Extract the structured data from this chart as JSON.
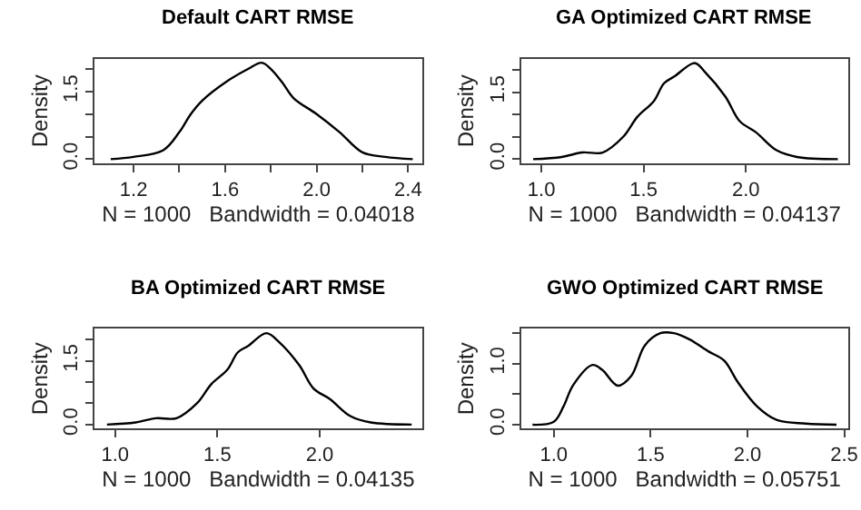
{
  "chart_data": [
    {
      "type": "line",
      "title": "Default CART RMSE",
      "xlabel": "N = 1000   Bandwidth = 0.04018",
      "ylabel": "Density",
      "color": "#000000",
      "marker": "none",
      "line_style": "solid",
      "x": [
        1.1,
        1.2,
        1.33,
        1.4,
        1.45,
        1.5,
        1.6,
        1.7,
        1.76,
        1.8,
        1.85,
        1.9,
        2.0,
        2.1,
        2.2,
        2.3,
        2.42
      ],
      "values": [
        0.0,
        0.05,
        0.2,
        0.6,
        1.0,
        1.3,
        1.7,
        2.0,
        2.14,
        2.0,
        1.7,
        1.35,
        1.0,
        0.6,
        0.15,
        0.05,
        0.0
      ],
      "xlim": [
        1.03,
        2.46
      ],
      "ylim": [
        -0.09,
        2.23
      ],
      "xticks": [
        1.2,
        {
          "value": 1.4,
          "label": null
        },
        1.6,
        {
          "value": 1.8,
          "label": null
        },
        {
          "value": 2,
          "label": "2.0"
        },
        {
          "value": 2.2,
          "label": null
        },
        2.4
      ],
      "yticks": [
        {
          "value": 0,
          "label": "0.0"
        },
        {
          "value": 0.5,
          "label": null
        },
        {
          "value": 1,
          "label": null
        },
        {
          "value": 1.5,
          "label": "1.5"
        },
        {
          "value": 2,
          "label": null
        }
      ]
    },
    {
      "type": "line",
      "title": "GA Optimized CART RMSE",
      "xlabel": "N = 1000   Bandwidth = 0.04137",
      "ylabel": "Density",
      "color": "#000000",
      "marker": "none",
      "line_style": "solid",
      "x": [
        0.96,
        1.1,
        1.2,
        1.3,
        1.4,
        1.47,
        1.55,
        1.6,
        1.65,
        1.75,
        1.8,
        1.9,
        1.97,
        2.05,
        2.15,
        2.25,
        2.45
      ],
      "values": [
        0.0,
        0.05,
        0.15,
        0.15,
        0.5,
        0.95,
        1.3,
        1.7,
        1.85,
        2.15,
        1.95,
        1.4,
        0.85,
        0.6,
        0.2,
        0.05,
        0.0
      ],
      "xlim": [
        0.9,
        2.5
      ],
      "ylim": [
        -0.09,
        2.25
      ],
      "xticks": [
        {
          "value": 1,
          "label": "1.0"
        },
        1.5,
        {
          "value": 2,
          "label": "2.0"
        }
      ],
      "yticks": [
        {
          "value": 0,
          "label": "0.0"
        },
        {
          "value": 0.5,
          "label": null
        },
        {
          "value": 1,
          "label": null
        },
        {
          "value": 1.5,
          "label": "1.5"
        },
        {
          "value": 2,
          "label": null
        }
      ]
    },
    {
      "type": "line",
      "title": "BA Optimized CART RMSE",
      "xlabel": "N = 1000   Bandwidth = 0.04135",
      "ylabel": "Density",
      "color": "#000000",
      "marker": "none",
      "line_style": "solid",
      "x": [
        0.96,
        1.1,
        1.2,
        1.3,
        1.4,
        1.47,
        1.55,
        1.6,
        1.65,
        1.74,
        1.8,
        1.9,
        1.97,
        2.05,
        2.15,
        2.25,
        2.45
      ],
      "values": [
        0.0,
        0.05,
        0.15,
        0.15,
        0.5,
        0.95,
        1.3,
        1.7,
        1.85,
        2.15,
        1.95,
        1.4,
        0.85,
        0.6,
        0.2,
        0.05,
        0.0
      ],
      "xlim": [
        0.9,
        2.5
      ],
      "ylim": [
        -0.09,
        2.25
      ],
      "xticks": [
        {
          "value": 1,
          "label": "1.0"
        },
        1.5,
        {
          "value": 2,
          "label": "2.0"
        }
      ],
      "yticks": [
        {
          "value": 0,
          "label": "0.0"
        },
        {
          "value": 0.5,
          "label": null
        },
        {
          "value": 1,
          "label": null
        },
        {
          "value": 1.5,
          "label": "1.5"
        },
        {
          "value": 2,
          "label": null
        }
      ]
    },
    {
      "type": "line",
      "title": "GWO Optimized CART RMSE",
      "xlabel": "N = 1000   Bandwidth = 0.05751",
      "ylabel": "Density",
      "color": "#000000",
      "marker": "none",
      "line_style": "solid",
      "x": [
        0.89,
        1.0,
        1.05,
        1.1,
        1.2,
        1.25,
        1.33,
        1.4,
        1.47,
        1.55,
        1.62,
        1.7,
        1.8,
        1.88,
        1.95,
        2.05,
        2.15,
        2.3,
        2.46
      ],
      "values": [
        0.0,
        0.05,
        0.3,
        0.65,
        0.98,
        0.9,
        0.64,
        0.8,
        1.3,
        1.5,
        1.5,
        1.4,
        1.2,
        1.05,
        0.7,
        0.3,
        0.08,
        0.02,
        0.0
      ],
      "xlim": [
        0.83,
        2.52
      ],
      "ylim": [
        -0.06,
        1.57
      ],
      "xticks": [
        {
          "value": 1,
          "label": "1.0"
        },
        1.5,
        {
          "value": 2,
          "label": "2.0"
        },
        2.5
      ],
      "yticks": [
        {
          "value": 0,
          "label": "0.0"
        },
        {
          "value": 0.5,
          "label": null
        },
        {
          "value": 1,
          "label": "1.0"
        },
        {
          "value": 1.5,
          "label": null
        }
      ]
    }
  ]
}
